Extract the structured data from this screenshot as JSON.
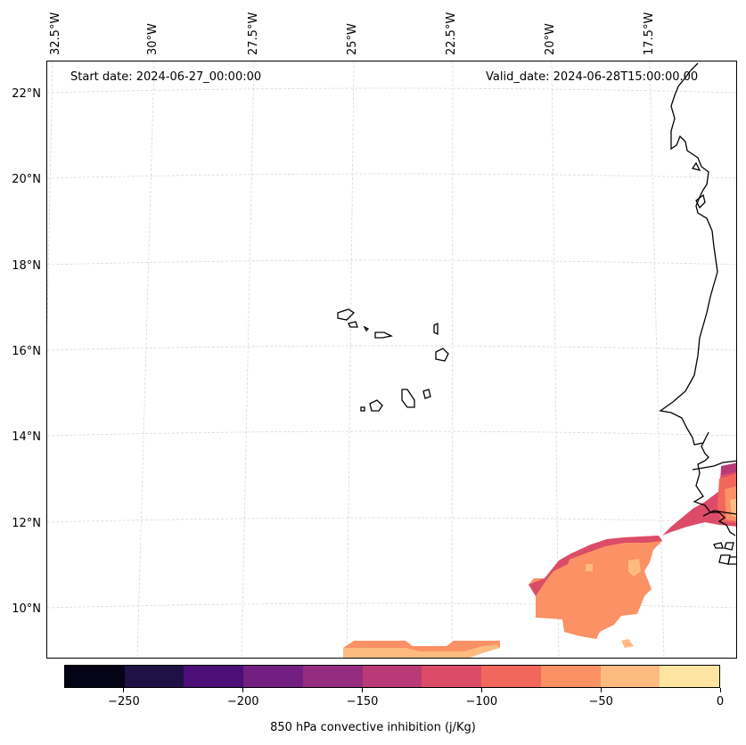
{
  "map": {
    "start_date": "Start date: 2024-06-27_00:00:00",
    "valid_date": "Valid_date: 2024-06-28T15:00:00.00",
    "lon_labels": [
      "32.5°W",
      "30°W",
      "27.5°W",
      "25°W",
      "22.5°W",
      "20°W",
      "17.5°W"
    ],
    "lat_labels": [
      "22°N",
      "20°N",
      "18°N",
      "16°N",
      "14°N",
      "12°N",
      "10°N"
    ],
    "coastline_color": "#000000",
    "gridline_color": "#cccccc"
  },
  "colorbar": {
    "title": "850 hPa convective inhibition (j/Kg)",
    "min": -275,
    "max": 0,
    "tick_values": [
      -250,
      -200,
      -150,
      -100,
      -50,
      0
    ],
    "tick_labels": [
      "−250",
      "−200",
      "−150",
      "−100",
      "−50",
      "0"
    ],
    "colors": [
      "#050416",
      "#1f1146",
      "#4b0f77",
      "#731e81",
      "#962c80",
      "#b93a77",
      "#dc4c68",
      "#f1675c",
      "#fb9165",
      "#febb81",
      "#fde5a1"
    ]
  }
}
